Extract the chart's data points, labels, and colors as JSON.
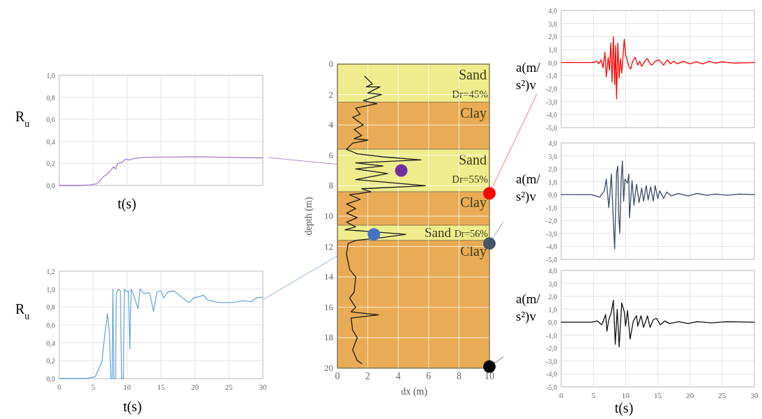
{
  "chart_data": [
    {
      "type": "line",
      "xlabel": "t(s)",
      "ylabel": "R$_{u}$",
      "xlim": [
        0,
        30
      ],
      "ylim": [
        0,
        1
      ],
      "xticks": [
        0,
        5,
        10,
        15,
        20,
        25,
        30
      ],
      "yticks": [
        {
          "value": 0,
          "label": "0,0"
        },
        {
          "value": 0.2,
          "label": "0,2"
        },
        {
          "value": 0.4,
          "label": "0,4"
        },
        {
          "value": 0.6,
          "label": "0,6"
        },
        {
          "value": 0.8,
          "label": "0,8"
        },
        {
          "value": 1,
          "label": "1,0"
        }
      ],
      "grid": true,
      "tick_labels": "y",
      "series": [
        {
          "color": "#a77fd0",
          "x": [
            0,
            3,
            4.5,
            5.5,
            6,
            6.5,
            7,
            7.5,
            8,
            8.3,
            8.6,
            9.3,
            9.8,
            10.3,
            11,
            12.5,
            20,
            30
          ],
          "values": [
            0,
            0,
            0.005,
            0.015,
            0.04,
            0.08,
            0.1,
            0.13,
            0.17,
            0.15,
            0.2,
            0.21,
            0.24,
            0.23,
            0.245,
            0.255,
            0.26,
            0.25
          ]
        }
      ]
    },
    {
      "type": "line",
      "xlabel": "t(s)",
      "ylabel": "R$_{u}$",
      "xlim": [
        0,
        30
      ],
      "ylim": [
        0,
        1.2
      ],
      "xticks": [
        0,
        5,
        10,
        15,
        20,
        25,
        30
      ],
      "yticks": [
        {
          "value": 0,
          "label": "0,0"
        },
        {
          "value": 0.2,
          "label": "0,2"
        },
        {
          "value": 0.4,
          "label": "0,4"
        },
        {
          "value": 0.6,
          "label": "0,6"
        },
        {
          "value": 0.8,
          "label": "0,8"
        },
        {
          "value": 1,
          "label": "1,0"
        },
        {
          "value": 1.2,
          "label": "1,2"
        }
      ],
      "grid": true,
      "series": [
        {
          "color": "#6fa8dc",
          "x": [
            0,
            4,
            5.3,
            6.3,
            6.5,
            7.1,
            7.4,
            7.6,
            7.8,
            7.9,
            8.05,
            8.3,
            8.4,
            8.7,
            9,
            9.2,
            9.45,
            9.6,
            9.9,
            10.2,
            10.4,
            10.6,
            10.9,
            11.6,
            11.9,
            12.5,
            13.3,
            13.9,
            14.4,
            15,
            15.4,
            16,
            16.9,
            17.7,
            19.1,
            19.8,
            21.3,
            21.8,
            23.5,
            25.6,
            27,
            28.3,
            29,
            30
          ],
          "values": [
            0,
            0,
            0.02,
            0.19,
            0.35,
            0.73,
            0.5,
            0,
            0,
            1,
            0,
            0,
            0.95,
            1,
            0.98,
            0,
            0,
            1,
            0.97,
            0.98,
            0.33,
            1,
            0.95,
            0.78,
            1,
            0.95,
            0.96,
            0.75,
            0.97,
            0.98,
            0.9,
            0.97,
            0.98,
            0.93,
            0.85,
            0.9,
            0.93,
            0.88,
            0.85,
            0.85,
            0.87,
            0.86,
            0.9,
            0.91
          ]
        }
      ]
    },
    {
      "type": "line",
      "xlabel": "dx (m)",
      "ylabel": "depth (m)",
      "xlim": [
        0,
        10
      ],
      "ylim": [
        20,
        0
      ],
      "xticks": [
        0,
        2,
        4,
        6,
        8,
        10
      ],
      "yticks": [
        0,
        2,
        4,
        6,
        8,
        10,
        12,
        14,
        16,
        18,
        20
      ],
      "grid": true,
      "bands": [
        {
          "axis": "y",
          "from": 0,
          "to": 2.5,
          "label": "Sand Dr=45%",
          "color": "#eeec8c"
        },
        {
          "axis": "y",
          "from": 2.5,
          "to": 5.6,
          "label": "Clay",
          "color": "#e9ab55"
        },
        {
          "axis": "y",
          "from": 5.6,
          "to": 8.4,
          "label": "Sand Dr=55%",
          "color": "#eeec8c"
        },
        {
          "axis": "y",
          "from": 8.4,
          "to": 10.6,
          "label": "Clay",
          "color": "#e9ab55"
        },
        {
          "axis": "y",
          "from": 10.6,
          "to": 11.6,
          "label": "Sand Dr=56%",
          "color": "#eeec8c"
        },
        {
          "axis": "y",
          "from": 11.6,
          "to": 20,
          "label": "Clay",
          "color": "#e9ab55"
        }
      ],
      "series": [
        {
          "color": "#1a1a1a",
          "x": [
            1.8,
            2.3,
            1.9,
            2.8,
            2,
            2.9,
            1.7,
            2.6,
            1.2,
            1.5,
            1,
            1.7,
            1.1,
            1.6,
            1.1,
            2,
            1,
            0.6,
            1.3,
            3,
            5.5,
            1.2,
            3,
            1.2,
            3.3,
            1.2,
            5.8,
            1.6,
            2.2,
            0.8,
            1.5,
            0.6,
            1.2,
            0.6,
            1.3,
            0.6,
            1.2,
            0.5,
            2,
            4.5,
            3,
            1.2,
            0.7,
            0.6,
            0.8,
            1.2,
            1.1,
            0.8,
            1.2,
            0.9,
            2.7,
            0.9,
            1,
            1.3,
            1,
            1.3,
            1.6
          ],
          "values": [
            0.8,
            1.3,
            1.5,
            1.5,
            1.9,
            2,
            2.4,
            2.6,
            2.9,
            3.3,
            3.5,
            4,
            4.3,
            4.7,
            4.9,
            5,
            5.2,
            5.6,
            5.9,
            6.1,
            6.3,
            6.5,
            6.7,
            6.9,
            7.2,
            7.6,
            8,
            8.2,
            8.4,
            8.6,
            8.9,
            9.2,
            9.5,
            9.8,
            10.1,
            10.4,
            10.7,
            10.9,
            11,
            11.2,
            11.4,
            11.6,
            11.8,
            12.5,
            13.5,
            14,
            15,
            15.4,
            16,
            16.3,
            16.5,
            16.7,
            17.5,
            18,
            18.8,
            19.5,
            19.7
          ]
        },
        {
          "type": "scatter",
          "marker": "circle",
          "x": [
            4.2,
            2.4,
            10,
            10,
            10
          ],
          "values": [
            7,
            11.2,
            8.5,
            11.8,
            19.9
          ],
          "colors": [
            "#7030a0",
            "#4472c4",
            "#ff0000",
            "#44546a",
            "#000000"
          ]
        }
      ]
    },
    {
      "type": "line",
      "ylabel": "a(m/s²)v",
      "xlim": [
        0,
        30
      ],
      "ylim": [
        -5,
        4
      ],
      "xticks": [
        0,
        5,
        10,
        15,
        20,
        25,
        30
      ],
      "yticks": [
        {
          "value": -5,
          "label": "-5,0"
        },
        {
          "value": -4,
          "label": "-4,0"
        },
        {
          "value": -3,
          "label": "-3,0"
        },
        {
          "value": -2,
          "label": "-2,0"
        },
        {
          "value": -1,
          "label": "-1,0"
        },
        {
          "value": 0,
          "label": "0,0"
        },
        {
          "value": 1,
          "label": "1,0"
        },
        {
          "value": 2,
          "label": "2,0"
        },
        {
          "value": 3,
          "label": "3,0"
        },
        {
          "value": 4,
          "label": "4,0"
        }
      ],
      "grid": true,
      "tick_labels": "y",
      "series": [
        {
          "color": "#ff0000",
          "x": [
            0,
            5,
            5.5,
            5.8,
            6.2,
            6.5,
            6.8,
            7,
            7.3,
            7.5,
            7.7,
            7.9,
            8.1,
            8.3,
            8.45,
            8.6,
            8.8,
            9,
            9.2,
            9.4,
            9.6,
            9.8,
            10,
            10.2,
            10.5,
            10.8,
            11.1,
            11.5,
            11.9,
            12.2,
            12.5,
            13,
            13.4,
            13.8,
            14.1,
            14.6,
            15.2,
            15.9,
            16.5,
            17,
            17.5,
            18,
            19,
            20,
            21,
            22,
            23,
            24,
            25,
            27,
            30
          ],
          "values": [
            0,
            0,
            0.1,
            -0.1,
            0.2,
            -0.4,
            0.8,
            -1.1,
            0.4,
            -0.6,
            1.5,
            -1.5,
            2,
            -1.7,
            1.3,
            -2.8,
            1.5,
            -1.2,
            0.3,
            -0.8,
            0.5,
            1.8,
            0.6,
            0.3,
            -0.3,
            -0.5,
            0.1,
            0.4,
            -0.2,
            0.1,
            -0.3,
            0.1,
            0.3,
            -0.1,
            -0.2,
            0.1,
            0.2,
            -0.2,
            0.2,
            -0.1,
            0.1,
            -0.1,
            0.1,
            -0.1,
            0.05,
            -0.1,
            0.1,
            -0.05,
            0.05,
            -0.05,
            0
          ]
        }
      ]
    },
    {
      "type": "line",
      "ylabel": "a(m/s²)v",
      "xlim": [
        0,
        30
      ],
      "ylim": [
        -5,
        4
      ],
      "xticks": [
        0,
        5,
        10,
        15,
        20,
        25,
        30
      ],
      "yticks": [
        {
          "value": -5,
          "label": "-5,0"
        },
        {
          "value": -4,
          "label": "-4,0"
        },
        {
          "value": -3,
          "label": "-3,0"
        },
        {
          "value": -2,
          "label": "-2,0"
        },
        {
          "value": -1,
          "label": "-1,0"
        },
        {
          "value": 0,
          "label": "0,0"
        },
        {
          "value": 1,
          "label": "1,0"
        },
        {
          "value": 2,
          "label": "2,0"
        },
        {
          "value": 3,
          "label": "3,0"
        },
        {
          "value": 4,
          "label": "4,0"
        }
      ],
      "grid": true,
      "tick_labels": "y",
      "series": [
        {
          "color": "#3a4a66",
          "x": [
            0,
            4.7,
            6,
            6.7,
            7,
            7.4,
            7.8,
            8.05,
            8.3,
            8.6,
            8.8,
            8.9,
            9.1,
            9.3,
            9.5,
            9.7,
            9.9,
            10.3,
            10.5,
            10.6,
            11,
            11.3,
            11.7,
            12.1,
            12.5,
            12.8,
            13.2,
            13.5,
            13.9,
            14.3,
            14.6,
            15,
            15.3,
            15.9,
            16.4,
            17.1,
            18.2,
            19.7,
            21.1,
            22.6,
            24,
            25.8,
            27.6,
            30
          ],
          "values": [
            0,
            0,
            -0.2,
            0.3,
            1.2,
            -1,
            1.6,
            -1.5,
            -4.2,
            1.7,
            2.2,
            -1.3,
            -3,
            1,
            2.6,
            -0.5,
            1.2,
            0.9,
            1.6,
            -1.8,
            1.1,
            -0.8,
            0.8,
            -0.6,
            0.5,
            -0.5,
            0.7,
            -0.4,
            0.6,
            -0.5,
            0.7,
            -0.3,
            0.3,
            -0.3,
            0.2,
            -0.1,
            0.1,
            -0.1,
            0.1,
            -0.05,
            0.05,
            -0.05,
            0.05,
            0
          ]
        }
      ]
    },
    {
      "type": "line",
      "xlabel": "t(s)",
      "ylabel": "a(m/s²)v",
      "xlim": [
        0,
        30
      ],
      "ylim": [
        -5,
        4
      ],
      "xticks": [
        0,
        5,
        10,
        15,
        20,
        25,
        30
      ],
      "yticks": [
        {
          "value": -5,
          "label": "-5,0"
        },
        {
          "value": -4,
          "label": "-4,0"
        },
        {
          "value": -3,
          "label": "-3,0"
        },
        {
          "value": -2,
          "label": "-2,0"
        },
        {
          "value": -1,
          "label": "-1,0"
        },
        {
          "value": 0,
          "label": "0,0"
        },
        {
          "value": 1,
          "label": "1,0"
        },
        {
          "value": 2,
          "label": "2,0"
        },
        {
          "value": 3,
          "label": "3,0"
        },
        {
          "value": 4,
          "label": "4,0"
        }
      ],
      "grid": true,
      "series": [
        {
          "color": "#111111",
          "x": [
            0,
            4.7,
            5.6,
            6.3,
            6.9,
            7.1,
            7.4,
            7.8,
            8.1,
            8.4,
            8.7,
            9,
            9.4,
            9.8,
            10,
            10.3,
            10.7,
            11.2,
            11.7,
            11.9,
            12.4,
            12.8,
            13.4,
            13.8,
            14.3,
            14.8,
            15.4,
            16.1,
            16.8,
            18.3,
            19.7,
            21.1,
            23.3,
            25.8,
            30
          ],
          "values": [
            0,
            0,
            0.1,
            -0.2,
            0.6,
            -0.7,
            0.2,
            0.8,
            1.7,
            -1.7,
            1,
            -1.9,
            1.5,
            0.8,
            -0.3,
            0.9,
            -1.3,
            0.1,
            0.5,
            -0.3,
            0.5,
            -0.4,
            0.5,
            -0.4,
            0.2,
            0.3,
            -0.2,
            0.1,
            -0.1,
            0.05,
            -0.1,
            0.05,
            -0.05,
            0.05,
            0
          ]
        }
      ]
    }
  ]
}
